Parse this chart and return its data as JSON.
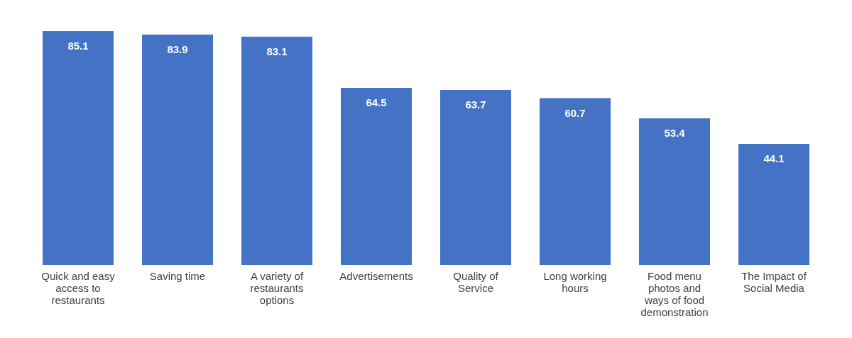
{
  "chart_data": {
    "type": "bar",
    "categories": [
      "Quick and easy access to restaurants",
      "Saving time",
      "A variety of restaurants options",
      "Advertisements",
      "Quality of Service",
      "Long working hours",
      "Food menu photos and ways of food demonstration",
      "The Impact of Social Media"
    ],
    "values": [
      85.1,
      83.9,
      83.1,
      64.5,
      63.7,
      60.7,
      53.4,
      44.1
    ],
    "color": "#4472c4",
    "data_labels": true,
    "grid": false
  }
}
